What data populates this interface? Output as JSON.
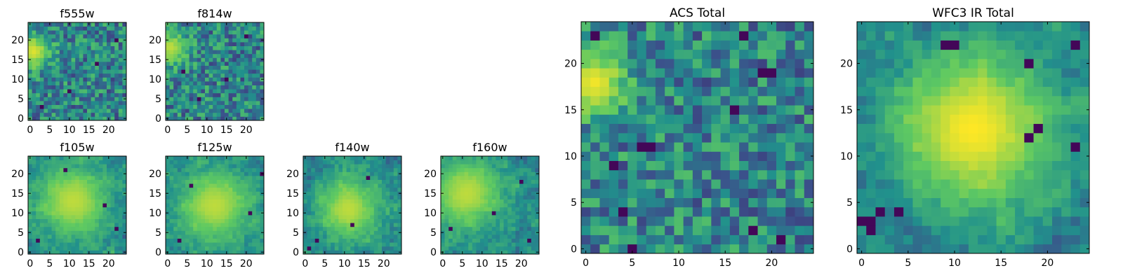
{
  "figure": {
    "background_color": "#ffffff",
    "colormap": {
      "name": "viridis",
      "stops": [
        "#440154",
        "#3b528b",
        "#21918c",
        "#5ec962",
        "#fde725"
      ]
    }
  },
  "chart_data": [
    {
      "id": "f555w",
      "type": "heatmap",
      "title": "f555w",
      "xlabel": "",
      "ylabel": "",
      "x_range": [
        0,
        24
      ],
      "y_range": [
        0,
        24
      ],
      "x_ticks": [
        0,
        5,
        10,
        15,
        20
      ],
      "y_ticks": [
        0,
        5,
        10,
        15,
        20
      ],
      "grid": false,
      "pixel_grid": [
        25,
        25
      ],
      "pattern": "noise",
      "hotspot": {
        "center": [
          1,
          17
        ],
        "radius": 3,
        "peak": 0.95
      },
      "low_spots": [
        [
          10,
          7
        ],
        [
          17,
          14
        ],
        [
          22,
          20
        ],
        [
          3,
          3
        ]
      ],
      "seed": 555
    },
    {
      "id": "f814w",
      "type": "heatmap",
      "title": "f814w",
      "xlabel": "",
      "ylabel": "",
      "x_range": [
        0,
        24
      ],
      "y_range": [
        0,
        24
      ],
      "x_ticks": [
        0,
        5,
        10,
        15,
        20
      ],
      "y_ticks": [
        0,
        5,
        10,
        15,
        20
      ],
      "grid": false,
      "pixel_grid": [
        25,
        25
      ],
      "pattern": "noise",
      "hotspot": {
        "center": [
          1,
          18
        ],
        "radius": 3,
        "peak": 0.9
      },
      "low_spots": [
        [
          8,
          5
        ],
        [
          15,
          10
        ],
        [
          20,
          21
        ],
        [
          4,
          12
        ]
      ],
      "seed": 814
    },
    {
      "id": "f105w",
      "type": "heatmap",
      "title": "f105w",
      "xlabel": "",
      "ylabel": "",
      "x_range": [
        0,
        24
      ],
      "y_range": [
        0,
        24
      ],
      "x_ticks": [
        0,
        5,
        10,
        15,
        20
      ],
      "y_ticks": [
        0,
        5,
        10,
        15,
        20
      ],
      "grid": false,
      "pixel_grid": [
        25,
        25
      ],
      "pattern": "smooth",
      "hotspot": {
        "center": [
          11,
          13
        ],
        "radius": 7,
        "peak": 0.85
      },
      "low_spots": [
        [
          9,
          21
        ],
        [
          19,
          12
        ],
        [
          2,
          3
        ],
        [
          22,
          6
        ]
      ],
      "seed": 105
    },
    {
      "id": "f125w",
      "type": "heatmap",
      "title": "f125w",
      "xlabel": "",
      "ylabel": "",
      "x_range": [
        0,
        24
      ],
      "y_range": [
        0,
        24
      ],
      "x_ticks": [
        0,
        5,
        10,
        15,
        20
      ],
      "y_ticks": [
        0,
        5,
        10,
        15,
        20
      ],
      "grid": false,
      "pixel_grid": [
        25,
        25
      ],
      "pattern": "smooth",
      "hotspot": {
        "center": [
          12,
          12
        ],
        "radius": 7,
        "peak": 0.85
      },
      "low_spots": [
        [
          3,
          3
        ],
        [
          24,
          20
        ],
        [
          21,
          10
        ],
        [
          6,
          17
        ]
      ],
      "seed": 125
    },
    {
      "id": "f140w",
      "type": "heatmap",
      "title": "f140w",
      "xlabel": "",
      "ylabel": "",
      "x_range": [
        0,
        24
      ],
      "y_range": [
        0,
        24
      ],
      "x_ticks": [
        0,
        5,
        10,
        15,
        20
      ],
      "y_ticks": [
        0,
        5,
        10,
        15,
        20
      ],
      "grid": false,
      "pixel_grid": [
        25,
        25
      ],
      "pattern": "smooth",
      "hotspot": {
        "center": [
          11,
          11
        ],
        "radius": 6,
        "peak": 0.85
      },
      "low_spots": [
        [
          3,
          3
        ],
        [
          1,
          1
        ],
        [
          16,
          19
        ],
        [
          12,
          7
        ]
      ],
      "seed": 140
    },
    {
      "id": "f160w",
      "type": "heatmap",
      "title": "f160w",
      "xlabel": "",
      "ylabel": "",
      "x_range": [
        0,
        24
      ],
      "y_range": [
        0,
        24
      ],
      "x_ticks": [
        0,
        5,
        10,
        15,
        20
      ],
      "y_ticks": [
        0,
        5,
        10,
        15,
        20
      ],
      "grid": false,
      "pixel_grid": [
        25,
        25
      ],
      "pattern": "smooth",
      "hotspot": {
        "center": [
          6,
          15
        ],
        "radius": 7,
        "peak": 0.85
      },
      "low_spots": [
        [
          2,
          6
        ],
        [
          13,
          10
        ],
        [
          20,
          18
        ],
        [
          22,
          3
        ]
      ],
      "seed": 160
    },
    {
      "id": "acs-total",
      "type": "heatmap",
      "title": "ACS Total",
      "xlabel": "",
      "ylabel": "",
      "x_range": [
        0,
        24
      ],
      "y_range": [
        0,
        24
      ],
      "x_ticks": [
        0,
        5,
        10,
        15,
        20
      ],
      "y_ticks": [
        0,
        5,
        10,
        15,
        20
      ],
      "grid": false,
      "pixel_grid": [
        25,
        25
      ],
      "pattern": "noise",
      "hotspot": {
        "center": [
          1,
          18
        ],
        "radius": 2.5,
        "peak": 0.98
      },
      "low_spots": [
        [
          19,
          19
        ],
        [
          20,
          19
        ],
        [
          16,
          15
        ],
        [
          6,
          11
        ],
        [
          7,
          11
        ],
        [
          3,
          9
        ],
        [
          4,
          4
        ],
        [
          18,
          2
        ],
        [
          21,
          1
        ],
        [
          5,
          0
        ],
        [
          1,
          23
        ],
        [
          17,
          23
        ]
      ],
      "seed": 1
    },
    {
      "id": "wfc3-ir-total",
      "type": "heatmap",
      "title": "WFC3 IR Total",
      "xlabel": "",
      "ylabel": "",
      "x_range": [
        0,
        24
      ],
      "y_range": [
        0,
        24
      ],
      "x_ticks": [
        0,
        5,
        10,
        15,
        20
      ],
      "y_ticks": [
        0,
        5,
        10,
        15,
        20
      ],
      "grid": false,
      "pixel_grid": [
        25,
        25
      ],
      "pattern": "smooth",
      "hotspot": {
        "center": [
          12,
          13
        ],
        "radius": 6,
        "peak": 0.95
      },
      "low_spots": [
        [
          0,
          3
        ],
        [
          1,
          3
        ],
        [
          2,
          4
        ],
        [
          1,
          2
        ],
        [
          4,
          4
        ],
        [
          9,
          22
        ],
        [
          10,
          22
        ],
        [
          18,
          20
        ],
        [
          19,
          13
        ],
        [
          18,
          12
        ],
        [
          23,
          22
        ],
        [
          23,
          11
        ]
      ],
      "seed": 2
    }
  ]
}
